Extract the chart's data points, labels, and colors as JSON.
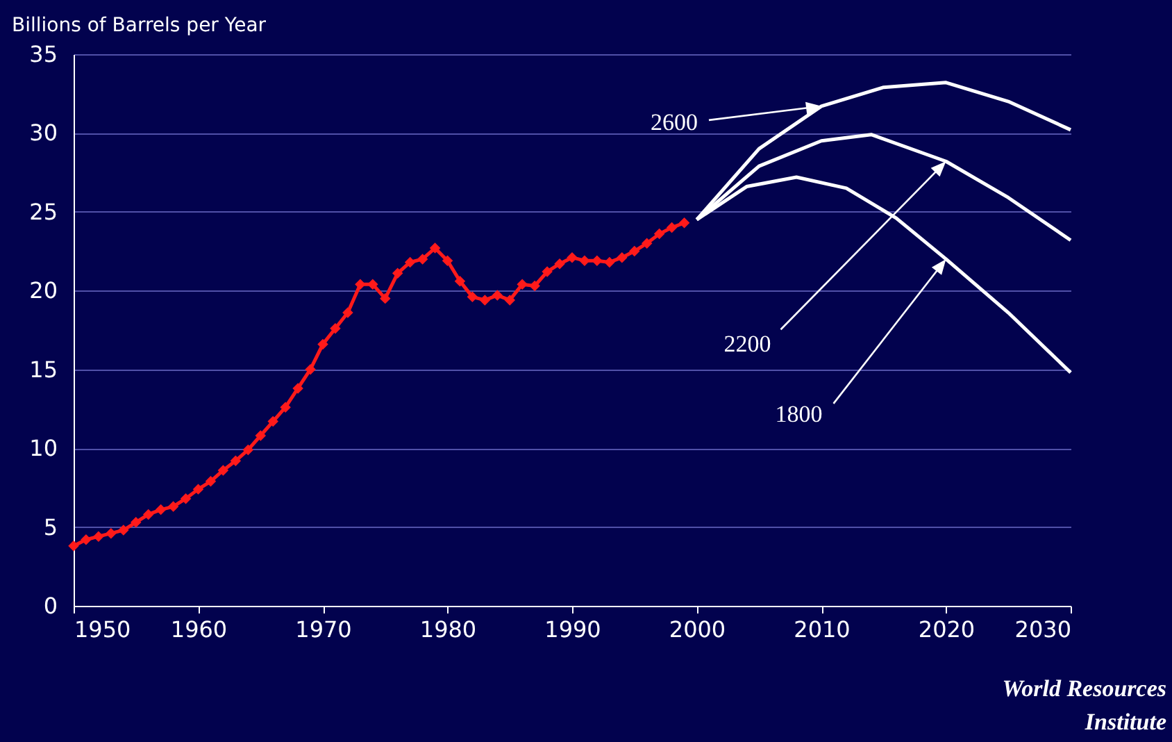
{
  "chart_data": {
    "type": "line",
    "ylabel": "Billions of Barrels per Year",
    "xlim": [
      1950,
      2030
    ],
    "xticks": [
      1950,
      1960,
      1970,
      1980,
      1990,
      2000,
      2010,
      2020,
      2030
    ],
    "ylim": [
      0,
      35
    ],
    "yticks": [
      0,
      5,
      10,
      15,
      20,
      25,
      30,
      35
    ],
    "grid": "y",
    "line_style": "solid",
    "series": [
      {
        "color": "#ff1a1a",
        "marker": "diamond",
        "x": [
          1950,
          1951,
          1952,
          1953,
          1954,
          1955,
          1956,
          1957,
          1958,
          1959,
          1960,
          1961,
          1962,
          1963,
          1964,
          1965,
          1966,
          1967,
          1968,
          1969,
          1970,
          1971,
          1972,
          1973,
          1974,
          1975,
          1976,
          1977,
          1978,
          1979,
          1980,
          1981,
          1982,
          1983,
          1984,
          1985,
          1986,
          1987,
          1988,
          1989,
          1990,
          1991,
          1992,
          1993,
          1994,
          1995,
          1996,
          1997,
          1998,
          1999
        ],
        "values": [
          3.8,
          4.2,
          4.4,
          4.6,
          4.8,
          5.3,
          5.8,
          6.1,
          6.3,
          6.8,
          7.4,
          7.9,
          8.6,
          9.2,
          9.9,
          10.8,
          11.7,
          12.6,
          13.8,
          15.0,
          16.6,
          17.6,
          18.6,
          20.4,
          20.4,
          19.5,
          21.1,
          21.8,
          22.0,
          22.7,
          21.9,
          20.6,
          19.6,
          19.4,
          19.7,
          19.4,
          20.4,
          20.3,
          21.2,
          21.7,
          22.1,
          21.9,
          21.9,
          21.8,
          22.1,
          22.5,
          23.0,
          23.6,
          24.0,
          24.3
        ]
      },
      {
        "name": "2600",
        "color": "#ffffff",
        "marker": "none",
        "x": [
          2000,
          2005,
          2010,
          2015,
          2020,
          2025,
          2030
        ],
        "values": [
          24.5,
          29.0,
          31.7,
          32.9,
          33.2,
          32.0,
          30.2
        ]
      },
      {
        "name": "2200",
        "color": "#ffffff",
        "marker": "none",
        "x": [
          2000,
          2005,
          2010,
          2014,
          2020,
          2025,
          2030
        ],
        "values": [
          24.5,
          27.9,
          29.5,
          29.9,
          28.2,
          25.9,
          23.2
        ]
      },
      {
        "name": "1800",
        "color": "#ffffff",
        "marker": "none",
        "x": [
          2000,
          2004,
          2008,
          2012,
          2016,
          2020,
          2025,
          2030
        ],
        "values": [
          24.5,
          26.6,
          27.2,
          26.5,
          24.6,
          22.0,
          18.6,
          14.8
        ]
      }
    ],
    "annotations": [
      "World Resources Institute"
    ]
  }
}
